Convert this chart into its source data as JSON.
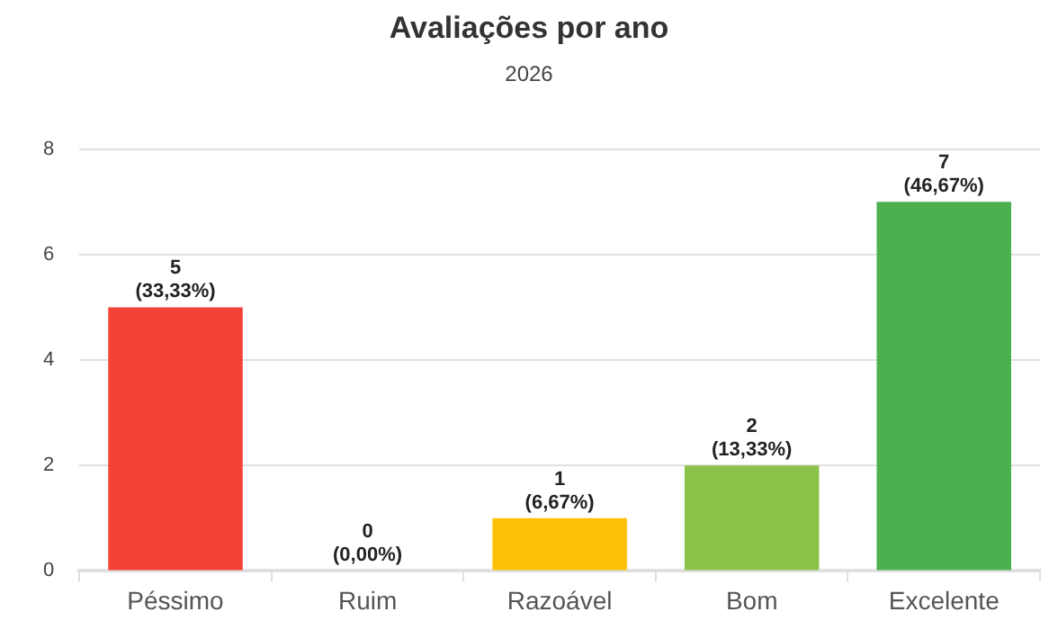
{
  "chart_data": {
    "type": "bar",
    "title": "Avaliações por ano",
    "subtitle": "2026",
    "categories": [
      "Péssimo",
      "Ruim",
      "Razoável",
      "Bom",
      "Excelente"
    ],
    "values": [
      5,
      0,
      1,
      2,
      7
    ],
    "colors": [
      "#f44336",
      "#ff9800",
      "#ffc107",
      "#8bc34a",
      "#4caf50"
    ],
    "value_labels": [
      "5\n(33,33%)",
      "0\n(0,00%)",
      "1\n(6,67%)",
      "2\n(13,33%)",
      "7\n(46,67%)"
    ],
    "ylim": [
      0,
      8
    ],
    "yticks": [
      0,
      2,
      4,
      6,
      8
    ],
    "grid": "y",
    "legend": false
  }
}
